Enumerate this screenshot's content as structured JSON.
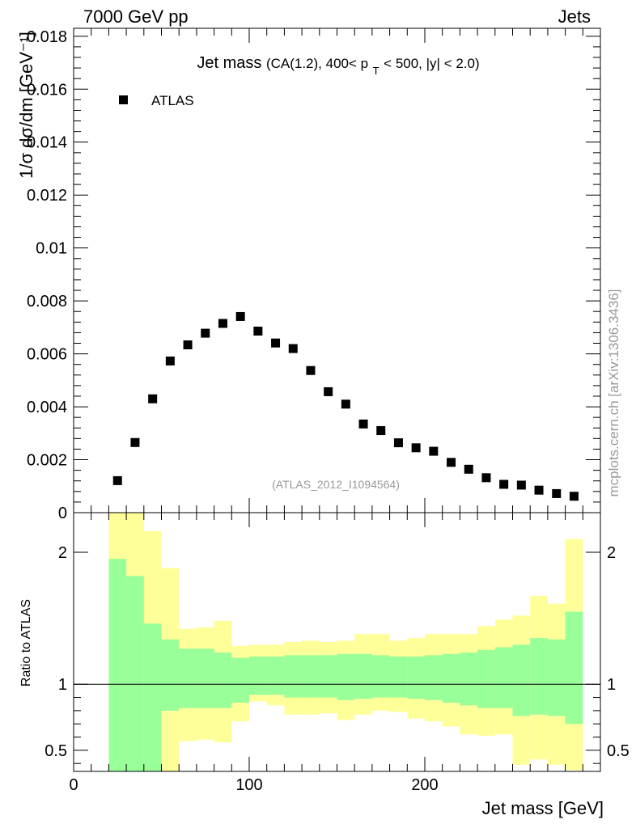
{
  "header": {
    "left": "7000 GeV pp",
    "right": "Jets"
  },
  "side_label": "mcplots.cern.ch [arXiv:1306.3436]",
  "watermark": "(ATLAS_2012_I1094564)",
  "colors": {
    "inner_band": "#99ff99",
    "outer_band": "#ffff99",
    "markers": "#000000"
  },
  "chart_data": [
    {
      "type": "scatter",
      "title_main": "Jet mass",
      "title_rest_1": "(CA(1.2), 400< p",
      "title_sub": "T",
      "title_rest_2": " < 500, |y| < 2.0)",
      "ylabel": "1/σ dσ/dm [GeV⁻¹]",
      "xlim": [
        0,
        300
      ],
      "ylim": [
        0,
        0.0183
      ],
      "yticks": [
        0,
        0.002,
        0.004,
        0.006,
        0.008,
        0.01,
        0.012,
        0.014,
        0.016,
        0.018
      ],
      "ytick_labels": [
        "0",
        "0.002",
        "0.004",
        "0.006",
        "0.008",
        "0.01",
        "0.012",
        "0.014",
        "0.016",
        "0.018"
      ],
      "legend": "top-left",
      "series": [
        {
          "name": "ATLAS",
          "x": [
            25,
            35,
            45,
            55,
            65,
            75,
            85,
            95,
            105,
            115,
            125,
            135,
            145,
            155,
            165,
            175,
            185,
            195,
            205,
            215,
            225,
            235,
            245,
            255,
            265,
            275,
            285
          ],
          "y": [
            0.00121,
            0.00265,
            0.0043,
            0.00573,
            0.00634,
            0.00678,
            0.00715,
            0.00741,
            0.00686,
            0.00641,
            0.0062,
            0.00537,
            0.00457,
            0.0041,
            0.00335,
            0.0031,
            0.00264,
            0.00245,
            0.00232,
            0.0019,
            0.00164,
            0.00132,
            0.00107,
            0.00104,
            0.00085,
            0.00072,
            0.00062
          ]
        }
      ]
    },
    {
      "type": "area",
      "ylabel": "Ratio to ATLAS",
      "xlabel": "Jet mass [GeV]",
      "xlim": [
        0,
        300
      ],
      "ylim": [
        0.34,
        2.3
      ],
      "xticks": [
        0,
        100,
        200
      ],
      "xtick_labels": [
        "0",
        "100",
        "200"
      ],
      "yticks": [
        0.5,
        1,
        2
      ],
      "ytick_labels": [
        "0.5",
        "1",
        "2"
      ],
      "reference_line": 1,
      "bins": [
        [
          20,
          30
        ],
        [
          30,
          40
        ],
        [
          40,
          50
        ],
        [
          50,
          60
        ],
        [
          60,
          70
        ],
        [
          70,
          80
        ],
        [
          80,
          90
        ],
        [
          90,
          100
        ],
        [
          100,
          110
        ],
        [
          110,
          120
        ],
        [
          120,
          130
        ],
        [
          130,
          140
        ],
        [
          140,
          150
        ],
        [
          150,
          160
        ],
        [
          160,
          170
        ],
        [
          170,
          180
        ],
        [
          180,
          190
        ],
        [
          190,
          200
        ],
        [
          200,
          210
        ],
        [
          210,
          220
        ],
        [
          220,
          230
        ],
        [
          230,
          240
        ],
        [
          240,
          250
        ],
        [
          250,
          260
        ],
        [
          260,
          270
        ],
        [
          270,
          280
        ],
        [
          280,
          290
        ]
      ],
      "inner_band_low": [
        0.3,
        0.3,
        0.3,
        0.8,
        0.82,
        0.82,
        0.82,
        0.86,
        0.92,
        0.92,
        0.9,
        0.9,
        0.9,
        0.88,
        0.89,
        0.9,
        0.9,
        0.89,
        0.88,
        0.86,
        0.84,
        0.82,
        0.82,
        0.76,
        0.77,
        0.76,
        0.7
      ],
      "inner_band_high": [
        1.95,
        1.82,
        1.46,
        1.34,
        1.27,
        1.27,
        1.24,
        1.2,
        1.21,
        1.21,
        1.22,
        1.22,
        1.22,
        1.23,
        1.23,
        1.22,
        1.21,
        1.21,
        1.22,
        1.23,
        1.24,
        1.26,
        1.28,
        1.3,
        1.35,
        1.34,
        1.55
      ],
      "outer_band_low": [
        0.3,
        0.3,
        0.3,
        0.3,
        0.57,
        0.58,
        0.56,
        0.72,
        0.87,
        0.84,
        0.77,
        0.77,
        0.78,
        0.73,
        0.77,
        0.8,
        0.79,
        0.74,
        0.72,
        0.68,
        0.62,
        0.61,
        0.62,
        0.39,
        0.43,
        0.39,
        0.35
      ],
      "outer_band_high": [
        2.3,
        2.3,
        2.16,
        1.88,
        1.42,
        1.43,
        1.48,
        1.29,
        1.3,
        1.3,
        1.32,
        1.33,
        1.32,
        1.33,
        1.38,
        1.38,
        1.33,
        1.35,
        1.38,
        1.38,
        1.38,
        1.44,
        1.49,
        1.52,
        1.67,
        1.61,
        2.1
      ]
    }
  ]
}
